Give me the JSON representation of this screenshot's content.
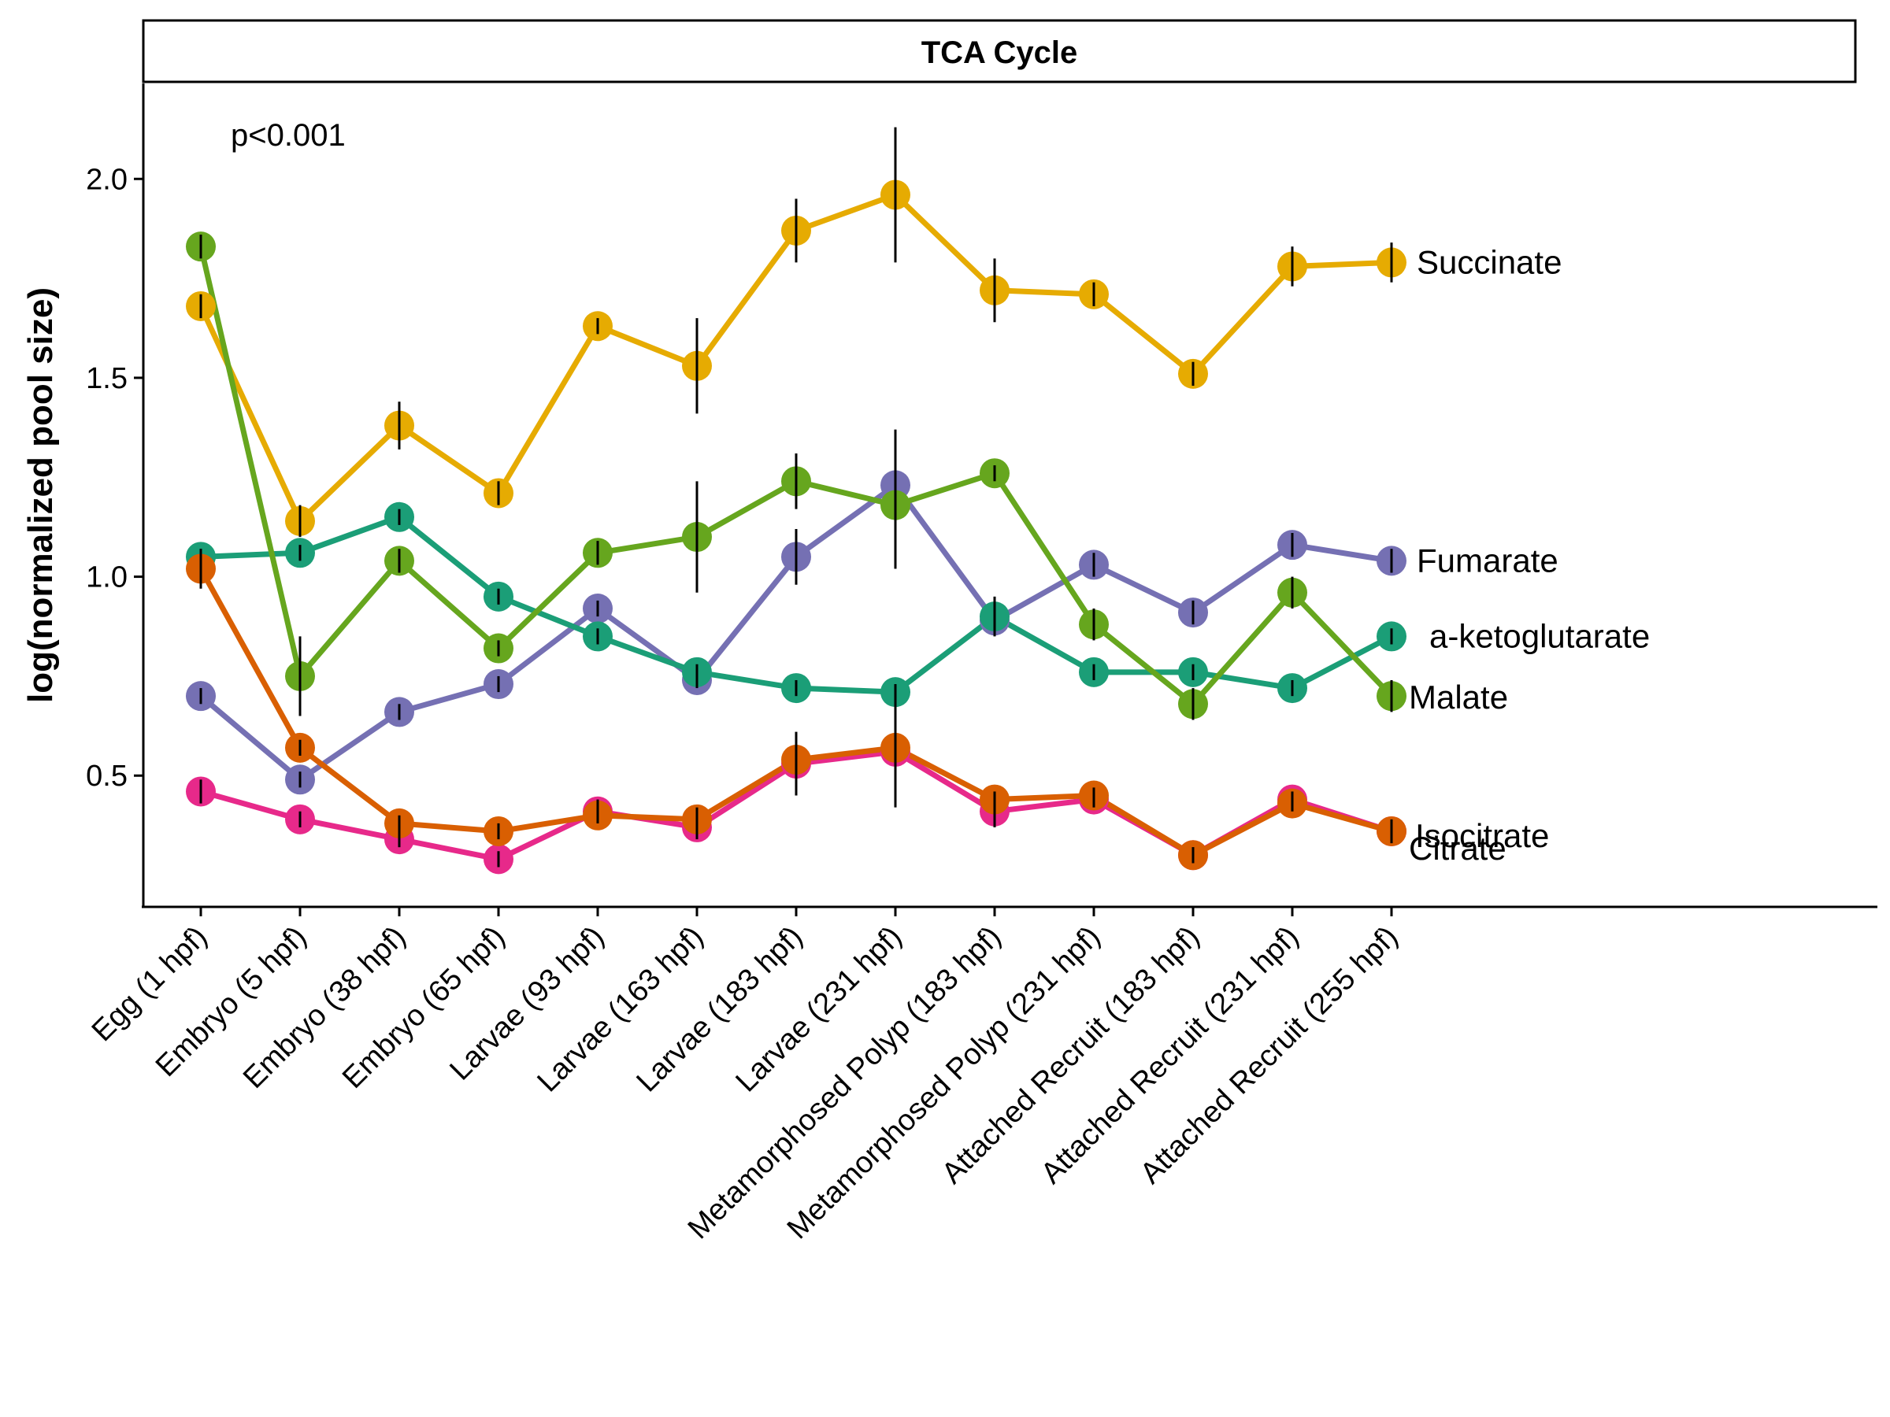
{
  "chart_data": {
    "type": "line",
    "title": "TCA Cycle",
    "xlabel": "",
    "ylabel": "log(normalized pool size)",
    "annotation": "p<0.001",
    "ylim": [
      0.17,
      2.24
    ],
    "yticks": [
      0.5,
      1.0,
      1.5,
      2.0
    ],
    "ytick_labels": [
      "0.5",
      "1.0",
      "1.5",
      "2.0"
    ],
    "grid": false,
    "legend": "direct labels at right end of lines",
    "categories": [
      "Egg (1 hpf)",
      "Embryo (5 hpf)",
      "Embryo (38 hpf)",
      "Embryo (65 hpf)",
      "Larvae (93 hpf)",
      "Larvae (163 hpf)",
      "Larvae (183 hpf)",
      "Larvae (231 hpf)",
      "Metamorphosed Polyp (183 hpf)",
      "Metamorphosed Polyp (231 hpf)",
      "Attached Recruit (183 hpf)",
      "Attached Recruit (231 hpf)",
      "Attached Recruit (255 hpf)"
    ],
    "series": [
      {
        "name": "Succinate",
        "color": "#E6AB02",
        "values": [
          1.68,
          1.14,
          1.38,
          1.21,
          1.63,
          1.53,
          1.87,
          1.96,
          1.72,
          1.71,
          1.51,
          1.78,
          1.79
        ],
        "errors": [
          0.03,
          0.04,
          0.06,
          0.03,
          0.02,
          0.12,
          0.08,
          0.17,
          0.08,
          0.03,
          0.03,
          0.05,
          0.05
        ]
      },
      {
        "name": "Fumarate",
        "color": "#7570B3",
        "values": [
          0.7,
          0.49,
          0.66,
          0.73,
          0.92,
          0.74,
          1.05,
          1.23,
          0.89,
          1.03,
          0.91,
          1.08,
          1.04
        ],
        "errors": [
          0.02,
          0.02,
          0.02,
          0.02,
          0.02,
          0.02,
          0.07,
          0.14,
          0.03,
          0.03,
          0.03,
          0.03,
          0.03
        ]
      },
      {
        "name": "a-ketoglutarate",
        "color": "#1B9E77",
        "values": [
          1.05,
          1.06,
          1.15,
          0.95,
          0.85,
          0.76,
          0.72,
          0.71,
          0.9,
          0.76,
          0.76,
          0.72,
          0.85
        ],
        "errors": [
          0.02,
          0.02,
          0.02,
          0.02,
          0.02,
          0.02,
          0.02,
          0.02,
          0.05,
          0.02,
          0.02,
          0.02,
          0.02
        ]
      },
      {
        "name": "Malate",
        "color": "#66A61E",
        "values": [
          1.83,
          0.75,
          1.04,
          0.82,
          1.06,
          1.1,
          1.24,
          1.18,
          1.26,
          0.88,
          0.68,
          0.96,
          0.7
        ],
        "errors": [
          0.03,
          0.1,
          0.03,
          0.02,
          0.03,
          0.14,
          0.07,
          0.16,
          0.02,
          0.04,
          0.04,
          0.04,
          0.04
        ]
      },
      {
        "name": "Isocitrate",
        "color": "#E7298A",
        "values": [
          0.46,
          0.39,
          0.34,
          0.29,
          0.41,
          0.37,
          0.53,
          0.56,
          0.41,
          0.44,
          0.3,
          0.44,
          0.36
        ],
        "errors": [
          0.03,
          0.02,
          0.02,
          0.02,
          0.03,
          0.03,
          0.08,
          0.14,
          0.04,
          0.02,
          0.02,
          0.02,
          0.03
        ]
      },
      {
        "name": "Citrate",
        "color": "#D95F02",
        "values": [
          1.02,
          0.57,
          0.38,
          0.36,
          0.4,
          0.39,
          0.54,
          0.57,
          0.44,
          0.45,
          0.3,
          0.43,
          0.36
        ],
        "errors": [
          0.05,
          0.02,
          0.02,
          0.02,
          0.02,
          0.03,
          0.04,
          0.05,
          0.02,
          0.02,
          0.02,
          0.02,
          0.02
        ]
      }
    ]
  }
}
